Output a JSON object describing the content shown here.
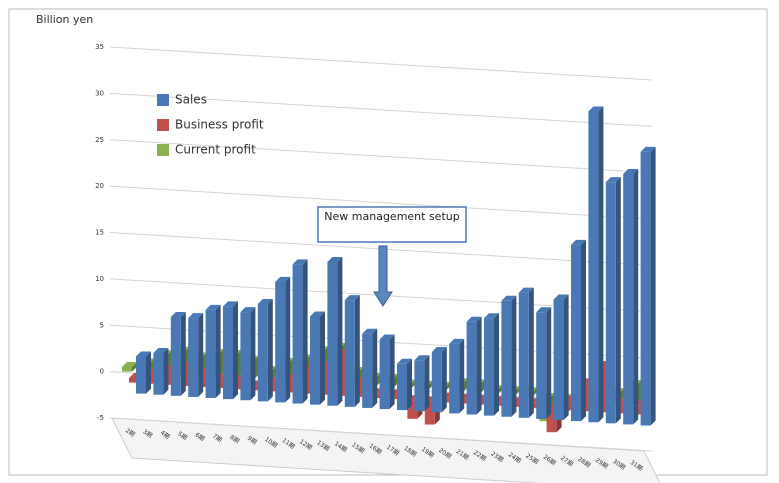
{
  "chart_data": {
    "type": "bar3d",
    "y_label": "Billion yen",
    "annotation": "New management setup",
    "categories": [
      "2期",
      "3期",
      "4期",
      "5期",
      "6期",
      "7期",
      "8期",
      "9期",
      "10期",
      "11期",
      "12期",
      "13期",
      "14期",
      "15期",
      "16期",
      "17期",
      "18期",
      "19期",
      "20期",
      "21期",
      "22期",
      "23期",
      "24期",
      "25期",
      "26期",
      "27期",
      "28期",
      "29期",
      "30期",
      "31期"
    ],
    "series": [
      {
        "name": "Sales",
        "color": "#4a78b4",
        "values": [
          4,
          4.5,
          8.5,
          8.5,
          9.5,
          10,
          9.5,
          10.5,
          13,
          15,
          9.5,
          15.5,
          11.5,
          8,
          7.5,
          5,
          5.5,
          6.5,
          7.5,
          10,
          10.5,
          12.5,
          13.5,
          11.5,
          13,
          19,
          33.5,
          26,
          27,
          29.5
        ]
      },
      {
        "name": "Business profit",
        "color": "#c0504d",
        "values": [
          0.5,
          1,
          1.5,
          2,
          1.5,
          1,
          1,
          0.5,
          1,
          1.5,
          2.5,
          3,
          4.5,
          1.5,
          0.5,
          0.5,
          -2,
          -2.5,
          0.5,
          0.5,
          0.5,
          0.5,
          0.5,
          0.5,
          -2.5,
          1,
          3,
          5,
          1,
          1
        ]
      },
      {
        "name": "Current profit",
        "color": "#8db050",
        "values": [
          0.5,
          1,
          2,
          2.5,
          2,
          2.5,
          2.5,
          2,
          1,
          2,
          2.5,
          3.5,
          4,
          1.5,
          1,
          1,
          0.5,
          0.5,
          0.5,
          1,
          1,
          0.5,
          0.5,
          0.5,
          -2.5,
          -1.5,
          0.5,
          0.5,
          1,
          2
        ]
      }
    ],
    "ylim": [
      -5,
      35
    ],
    "yticks": [
      -5,
      0,
      5,
      10,
      15,
      20,
      25,
      30,
      35
    ],
    "legend": "upper-left",
    "grid": true
  }
}
